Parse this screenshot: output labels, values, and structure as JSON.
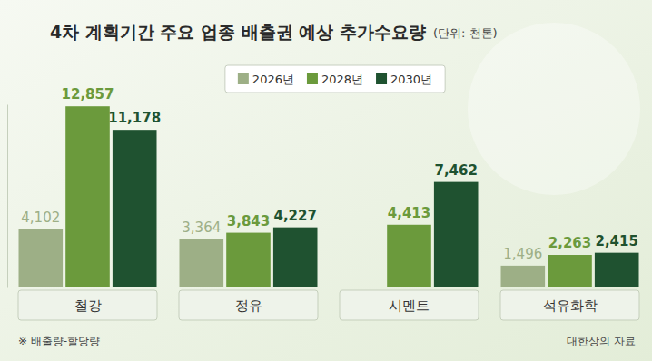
{
  "chart_data": {
    "type": "bar",
    "title": "4차 계획기간 주요 업종 배출권 예상 추가수요량",
    "subtitle": "(단위: 천톤)",
    "categories": [
      "철강",
      "정유",
      "시멘트",
      "석유화학"
    ],
    "series": [
      {
        "name": "2026년",
        "color": "#9daf86",
        "values": [
          4102,
          3364,
          null,
          1496
        ],
        "value_labels": [
          "4,102",
          "3,364",
          null,
          "1,496"
        ]
      },
      {
        "name": "2028년",
        "color": "#6b9a3c",
        "values": [
          12857,
          3843,
          4413,
          2263
        ],
        "value_labels": [
          "12,857",
          "3,843",
          "4,413",
          "2,263"
        ]
      },
      {
        "name": "2030년",
        "color": "#1f5230",
        "values": [
          11178,
          4227,
          7462,
          2415
        ],
        "value_labels": [
          "11,178",
          "4,227",
          "7,462",
          "2,415"
        ]
      }
    ],
    "ylim": [
      0,
      13000
    ],
    "legend": "top",
    "data_labels": true,
    "tick_labels": false,
    "annotations": [
      "※ 배출량-할당량",
      "대한상의 자료"
    ]
  }
}
